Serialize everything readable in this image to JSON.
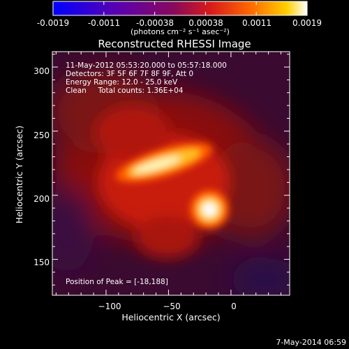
{
  "colorbar": {
    "ticks": [
      "-0.0019",
      "-0.0011",
      "-0.00038",
      "0.00038",
      "0.0011",
      "0.0019"
    ],
    "unit_label": "(photons cm⁻² s⁻¹ asec⁻²)"
  },
  "info": {
    "line1": "11-May-2012 05:53:20.000 to 05:57:18.000",
    "line2": "Detectors: 3F 5F 6F 7F 8F 9F, Att 0",
    "line3": "Energy Range: 12.0 - 25.0 keV",
    "line4": "Clean     Total counts: 1.36E+04",
    "peak": "Position of Peak = [-18,188]"
  },
  "footer": {
    "timestamp": "7-May-2014 06:59"
  },
  "chart_data": {
    "type": "heatmap",
    "title": "Reconstructed RHESSI Image",
    "xlabel": "Heliocentric X (arcsec)",
    "ylabel": "Heliocentric Y (arcsec)",
    "xlim": [
      -143,
      47
    ],
    "ylim": [
      122,
      312
    ],
    "x_ticks": [
      -100,
      -50,
      0
    ],
    "y_ticks": [
      150,
      200,
      250,
      300
    ],
    "colorscale_range": [
      -0.0019,
      0.0019
    ],
    "colormap": "hot (blue-purple-red-yellow-white)",
    "peak_position": [
      -18,
      188
    ],
    "sources": [
      {
        "x": -55,
        "y": 230,
        "description": "elongated bright source"
      },
      {
        "x": -18,
        "y": 188,
        "description": "compact bright source (peak)"
      }
    ]
  }
}
